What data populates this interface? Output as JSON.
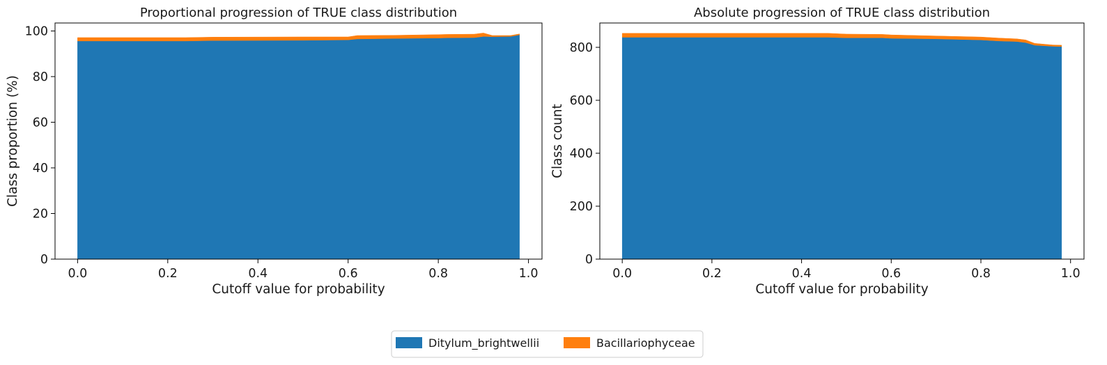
{
  "colors": {
    "ditylum": "#1f77b4",
    "bacillario": "#ff7f0e"
  },
  "legend": {
    "position": "bottom-center",
    "entries": [
      "Ditylum_brightwellii",
      "Bacillariophyceae"
    ]
  },
  "chart_data": [
    {
      "type": "area",
      "stacked": true,
      "title": "Proportional progression of TRUE class distribution",
      "xlabel": "Cutoff value for probability",
      "ylabel": "Class proportion (%)",
      "xlim": [
        -0.05,
        1.03
      ],
      "ylim": [
        0,
        103.5
      ],
      "xticks": [
        "0.0",
        "0.2",
        "0.4",
        "0.6",
        "0.8",
        "1.0"
      ],
      "yticks": [
        "0",
        "20",
        "40",
        "60",
        "80",
        "100"
      ],
      "x": [
        0.0,
        0.24,
        0.3,
        0.5,
        0.6,
        0.62,
        0.7,
        0.8,
        0.82,
        0.88,
        0.9,
        0.92,
        0.96,
        0.98
      ],
      "series": [
        {
          "name": "Ditylum_brightwellii",
          "values": [
            95.6,
            95.6,
            95.8,
            95.9,
            96.1,
            96.5,
            96.7,
            96.9,
            97.0,
            97.1,
            97.6,
            97.5,
            97.6,
            98.3
          ]
        },
        {
          "name": "Bacillariophyceae",
          "values": [
            1.5,
            1.5,
            1.5,
            1.5,
            1.3,
            1.5,
            1.4,
            1.5,
            1.5,
            1.5,
            1.5,
            0.5,
            0.4,
            0.4
          ]
        }
      ]
    },
    {
      "type": "area",
      "stacked": true,
      "title": "Absolute progression of TRUE class distribution",
      "xlabel": "Cutoff value for probability",
      "ylabel": "Class count",
      "xlim": [
        -0.05,
        1.03
      ],
      "ylim": [
        0,
        892
      ],
      "xticks": [
        "0.0",
        "0.2",
        "0.4",
        "0.6",
        "0.8",
        "1.0"
      ],
      "yticks": [
        "0",
        "200",
        "400",
        "600",
        "800"
      ],
      "x": [
        0.0,
        0.3,
        0.46,
        0.5,
        0.58,
        0.6,
        0.7,
        0.8,
        0.84,
        0.88,
        0.9,
        0.92,
        0.94,
        0.96,
        0.98
      ],
      "series": [
        {
          "name": "Ditylum_brightwellii",
          "values": [
            838,
            838,
            838,
            836,
            836,
            834,
            832,
            828,
            824,
            822,
            818,
            808,
            806,
            804,
            803
          ]
        },
        {
          "name": "Bacillariophyceae",
          "values": [
            15,
            15,
            15,
            14,
            13,
            13,
            11,
            11,
            11,
            10,
            10,
            7,
            6,
            5,
            5
          ]
        }
      ]
    }
  ]
}
